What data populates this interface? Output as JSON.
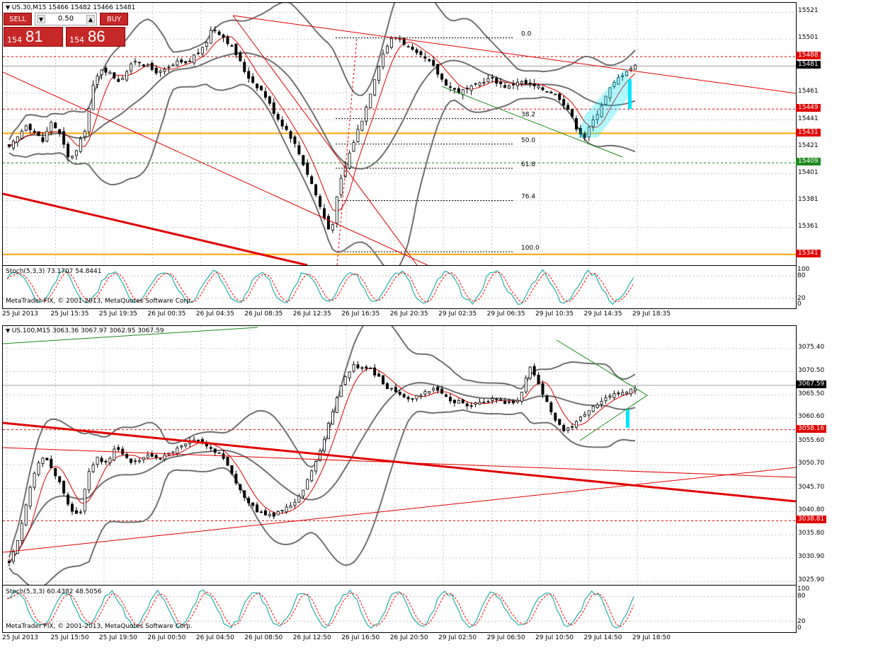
{
  "chart_data": [
    {
      "type": "candlestick",
      "symbol_header": "US.30,M15  15466 15482 15466 15481",
      "price_axis": [
        "15521",
        "15501",
        "15481",
        "15461",
        "15441",
        "15421",
        "15401",
        "15381",
        "15361",
        "15341"
      ],
      "ylim": [
        15333,
        15528
      ],
      "price_tags": [
        {
          "value": 15488,
          "text": "15488",
          "color": "#e00000",
          "line": "dashed-red"
        },
        {
          "value": 15481,
          "text": "15481",
          "color": "#000000",
          "line": "solid-gray"
        },
        {
          "value": 15449,
          "text": "15449",
          "color": "#e00000",
          "line": "dashed-red"
        },
        {
          "value": 15431,
          "text": "15431",
          "color": "#e00000",
          "line": "orange"
        },
        {
          "value": 15409,
          "text": "15409",
          "color": "#1a8a1a",
          "line": "dashed-green"
        },
        {
          "value": 15341,
          "text": "15341",
          "color": "#e00000",
          "line": "orange"
        }
      ],
      "fib_levels": [
        {
          "label": "0.0",
          "value": 15502
        },
        {
          "label": "38.2",
          "value": 15442
        },
        {
          "label": "50.0",
          "value": 15423
        },
        {
          "label": "61.8",
          "value": 15405
        },
        {
          "label": "76.4",
          "value": 15381
        },
        {
          "label": "100.0",
          "value": 15343
        }
      ],
      "stoch_label": "Stoch(5,3,3) 73.1707 54.8441",
      "stoch_levels": [
        "100",
        "80",
        "20",
        "0"
      ],
      "copyright": "MetaTrader FIX, © 2001-2013, MetaQuotes Software Corp.",
      "time_axis": [
        "25 Jul 2013",
        "25 Jul 15:35",
        "25 Jul 19:35",
        "26 Jul 00:35",
        "26 Jul 04:35",
        "26 Jul 08:35",
        "26 Jul 12:35",
        "26 Jul 16:35",
        "26 Jul 20:35",
        "29 Jul 02:35",
        "29 Jul 06:35",
        "29 Jul 10:35",
        "29 Jul 14:35",
        "29 Jul 18:35"
      ],
      "close_path": [
        15420,
        15428,
        15438,
        15432,
        15425,
        15440,
        15430,
        15412,
        15418,
        15435,
        15468,
        15480,
        15475,
        15470,
        15478,
        15486,
        15482,
        15478,
        15476,
        15480,
        15484,
        15482,
        15490,
        15494,
        15510,
        15505,
        15498,
        15488,
        15475,
        15468,
        15462,
        15450,
        15440,
        15432,
        15420,
        15405,
        15390,
        15372,
        15356,
        15392,
        15412,
        15430,
        15446,
        15468,
        15488,
        15500,
        15503,
        15496,
        15490,
        15487,
        15482,
        15472,
        15466,
        15462,
        15463,
        15466,
        15470,
        15472,
        15468,
        15465,
        15470,
        15468,
        15466,
        15464,
        15462,
        15458,
        15450,
        15436,
        15428,
        15440,
        15452,
        15464,
        15472,
        15478,
        15481
      ]
    },
    {
      "type": "candlestick",
      "symbol_header": "US.100,M15  3063.36 3067.97 3062.95 3067.59",
      "price_axis": [
        "3075.40",
        "3070.50",
        "3065.50",
        "3060.60",
        "3055.60",
        "3050.70",
        "3045.70",
        "3040.80",
        "3035.80",
        "3030.90",
        "3025.90"
      ],
      "ylim": [
        3025.2,
        3080.2
      ],
      "price_tags": [
        {
          "value": 3067.59,
          "text": "3067.59",
          "color": "#000000",
          "line": "solid-gray"
        },
        {
          "value": 3058.16,
          "text": "3058.16",
          "color": "#e00000",
          "line": "dashed-red"
        },
        {
          "value": 3038.81,
          "text": "3038.81",
          "color": "#e00000",
          "line": "dashed-red"
        }
      ],
      "stoch_label": "Stoch(5,3,3) 60.4382 48.5056",
      "stoch_levels": [
        "100",
        "80",
        "20",
        "0"
      ],
      "copyright": "MetaTrader FIX, © 2001-2013, MetaQuotes Software Corp.",
      "time_axis": [
        "25 Jul 2013",
        "25 Jul 15:50",
        "25 Jul 19:50",
        "26 Jul 00:50",
        "26 Jul 04:50",
        "26 Jul 08:50",
        "26 Jul 12:50",
        "26 Jul 16:50",
        "26 Jul 20:50",
        "29 Jul 02:50",
        "29 Jul 06:50",
        "29 Jul 10:50",
        "29 Jul 14:50",
        "29 Jul 18:50"
      ],
      "close_path": [
        3030,
        3035,
        3043,
        3050,
        3053,
        3049,
        3046,
        3041,
        3040,
        3049,
        3052,
        3051,
        3054,
        3053,
        3051,
        3052,
        3053,
        3052,
        3053,
        3054,
        3055,
        3056,
        3055,
        3054,
        3053,
        3050,
        3046,
        3043,
        3041,
        3040,
        3040,
        3041,
        3042,
        3044,
        3048,
        3052,
        3058,
        3064,
        3069,
        3072,
        3071,
        3071,
        3069,
        3067,
        3066,
        3065,
        3065,
        3066,
        3067,
        3066,
        3064,
        3064,
        3063,
        3064,
        3064,
        3065,
        3064,
        3064,
        3065,
        3072,
        3068,
        3064,
        3060,
        3058,
        3059,
        3061,
        3063,
        3064,
        3065,
        3066,
        3066,
        3067
      ]
    }
  ],
  "trade_panel": {
    "sell_label": "SELL",
    "buy_label": "BUY",
    "lot": "0.50",
    "sell_small": "154",
    "sell_big": "81",
    "buy_small": "154",
    "buy_big": "86"
  },
  "colors": {
    "orange": "#ffa500",
    "red_line": "#e00000",
    "green_line": "#1a8a1a",
    "bollinger": "#707070",
    "stoch_main": "#20b2aa",
    "stoch_signal": "#ff0000",
    "tag_red": "#e00000",
    "tag_black": "#000000",
    "tag_green": "#1a8a1a",
    "cyan": "#00e5ff"
  }
}
